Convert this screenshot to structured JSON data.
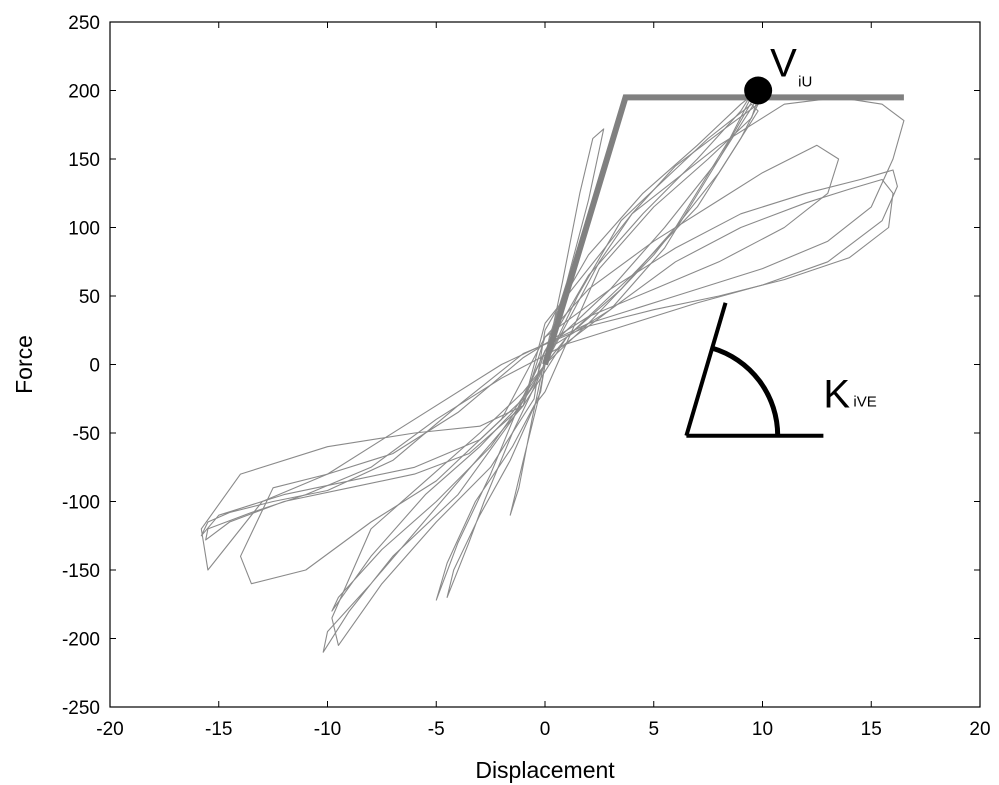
{
  "chart_data": {
    "type": "line",
    "title": "",
    "xlabel": "Displacement",
    "ylabel": "Force",
    "xlim": [
      -20,
      20
    ],
    "ylim": [
      -250,
      250
    ],
    "xticks": [
      -20,
      -15,
      -10,
      -5,
      0,
      5,
      10,
      15,
      20
    ],
    "yticks": [
      -250,
      -200,
      -150,
      -100,
      -50,
      0,
      50,
      100,
      150,
      200,
      250
    ],
    "grid": false,
    "legend": "none",
    "colors": {
      "hysteresis": "#8a8a8a",
      "envelope": "#808080",
      "annotation": "#000000"
    },
    "series": [
      {
        "kind": "hysteresis",
        "loops": [
          {
            "x": [
              0,
              0.8,
              1.6,
              2.2,
              2.7,
              2.0,
              1.0,
              0.2,
              -0.6,
              -1.2,
              -1.6,
              -1.0,
              -0.3,
              0
            ],
            "y": [
              0,
              60,
              125,
              165,
              172,
              120,
              60,
              20,
              -40,
              -90,
              -110,
              -70,
              -25,
              0
            ]
          },
          {
            "x": [
              0,
              1.5,
              3.5,
              5.5,
              7.5,
              9.5,
              9.8,
              8.0,
              5.0,
              2.0,
              0,
              -1.5,
              -2.8,
              -3.5,
              -4.5,
              -4.2,
              -3.0,
              -1.6,
              -0.2,
              0
            ],
            "y": [
              0,
              50,
              105,
              135,
              165,
              190,
              185,
              140,
              80,
              30,
              0,
              -50,
              -100,
              -130,
              -170,
              -150,
              -110,
              -70,
              -20,
              0
            ]
          },
          {
            "x": [
              0,
              2.5,
              5.0,
              7.5,
              9.5,
              9.8,
              8.0,
              5.5,
              3.0,
              1.0,
              0,
              -1.2,
              -2.5,
              -4.0,
              -5.0,
              -4.5,
              -3.2,
              -1.5,
              -0.5,
              0
            ],
            "y": [
              -20,
              70,
              115,
              150,
              180,
              195,
              150,
              100,
              55,
              25,
              10,
              -30,
              -80,
              -130,
              -172,
              -145,
              -100,
              -60,
              -30,
              -20
            ]
          },
          {
            "x": [
              0,
              2.0,
              4.5,
              7.0,
              9.0,
              9.8,
              8.5,
              6.0,
              3.5,
              1.0,
              0,
              -1.5,
              -3.0,
              -5.5,
              -8.0,
              -9.8,
              -9.5,
              -7.5,
              -5.0,
              -2.5,
              -0.5,
              0
            ],
            "y": [
              10,
              65,
              110,
              150,
              185,
              205,
              165,
              100,
              55,
              20,
              0,
              -35,
              -60,
              -95,
              -140,
              -180,
              -170,
              -135,
              -100,
              -60,
              -15,
              10
            ]
          },
          {
            "x": [
              0,
              2.0,
              4.5,
              7.0,
              9.0,
              9.8,
              8.0,
              5.5,
              3.0,
              0.5,
              -1.0,
              -3.0,
              -5.5,
              -8.0,
              -9.8,
              -9.5,
              -7.5,
              -5.0,
              -2.5,
              -0.5,
              0
            ],
            "y": [
              25,
              80,
              125,
              160,
              190,
              200,
              150,
              85,
              40,
              10,
              -20,
              -50,
              -85,
              -120,
              -185,
              -205,
              -160,
              -115,
              -75,
              -25,
              25
            ]
          },
          {
            "x": [
              0,
              3.0,
              6.0,
              9.0,
              12.0,
              14.0,
              15.5,
              16.0,
              15.8,
              14.0,
              11.0,
              8.0,
              5.0,
              2.0,
              -1.0,
              -4.0,
              -7.0,
              -10.0,
              -12.5,
              -14.5,
              -15.5,
              -15.8,
              -15.0,
              -12.0,
              -9.0,
              -6.0,
              -3.0,
              -1.0,
              0
            ],
            "y": [
              10,
              40,
              75,
              100,
              118,
              128,
              135,
              125,
              100,
              78,
              62,
              50,
              40,
              28,
              8,
              -30,
              -70,
              -92,
              -100,
              -108,
              -115,
              -125,
              -110,
              -95,
              -85,
              -75,
              -55,
              -25,
              10
            ]
          },
          {
            "x": [
              0,
              3.0,
              6.0,
              9.0,
              12.0,
              14.5,
              16.0,
              16.2,
              15.5,
              13.0,
              10.0,
              7.0,
              4.0,
              1.0,
              -2.0,
              -5.0,
              -8.0,
              -11.0,
              -13.5,
              -15.5,
              -15.6,
              -14.5,
              -12.0,
              -9.0,
              -6.0,
              -3.5,
              -1.0,
              0
            ],
            "y": [
              20,
              55,
              85,
              110,
              125,
              135,
              142,
              130,
              105,
              75,
              58,
              45,
              30,
              15,
              -10,
              -40,
              -75,
              -95,
              -108,
              -120,
              -128,
              -115,
              -100,
              -90,
              -80,
              -65,
              -30,
              20
            ]
          },
          {
            "x": [
              0,
              4.0,
              8.0,
              11.0,
              13.5,
              15.5,
              16.5,
              16.0,
              15.0,
              13.0,
              10.0,
              6.0,
              2.0,
              -2.0,
              -6.0,
              -10.0,
              -13.0,
              -15.5,
              -15.8,
              -14.0,
              -10.0,
              -6.0,
              -3.0,
              -1.0,
              0
            ],
            "y": [
              30,
              110,
              160,
              190,
              195,
              190,
              178,
              150,
              115,
              90,
              70,
              50,
              30,
              0,
              -40,
              -80,
              -100,
              -150,
              -120,
              -80,
              -60,
              -50,
              -45,
              -30,
              30
            ]
          },
          {
            "x": [
              0,
              2.0,
              5.0,
              8.0,
              10.0,
              12.5,
              13.5,
              13.0,
              11.0,
              8.0,
              5.0,
              2.0,
              -1.0,
              -4.0,
              -7.0,
              -10.0,
              -12.5,
              -14.0,
              -13.5,
              -11.0,
              -8.0,
              -5.0,
              -2.0,
              0
            ],
            "y": [
              20,
              55,
              90,
              120,
              140,
              160,
              150,
              125,
              100,
              75,
              55,
              35,
              5,
              -35,
              -65,
              -80,
              -90,
              -140,
              -160,
              -150,
              -115,
              -85,
              -40,
              20
            ]
          },
          {
            "x": [
              0,
              1.0,
              2.5,
              4.0,
              6.0,
              8.5,
              9.8,
              9.0,
              7.0,
              4.0,
              1.0,
              -1.0,
              -4.5,
              -8.0,
              -10.0,
              -10.2,
              -9.0,
              -7.0,
              -4.0,
              -1.5,
              0
            ],
            "y": [
              0,
              30,
              75,
              110,
              145,
              175,
              190,
              165,
              115,
              65,
              20,
              -30,
              -95,
              -160,
              -195,
              -210,
              -180,
              -140,
              -95,
              -40,
              0
            ]
          }
        ]
      },
      {
        "kind": "envelope",
        "x": [
          0,
          3.7,
          16.5
        ],
        "y": [
          0,
          195,
          195
        ]
      }
    ],
    "annotations": [
      {
        "type": "point",
        "x": 9.8,
        "y": 200,
        "label": "V",
        "sub": "iU"
      },
      {
        "type": "stiffness-angle",
        "origin": [
          6.5,
          -52
        ],
        "baseline_end": [
          12.8,
          -52
        ],
        "slope_end": [
          8.3,
          45
        ],
        "arc_radius": 4.2,
        "label": "K",
        "sub": "iVE"
      }
    ]
  }
}
